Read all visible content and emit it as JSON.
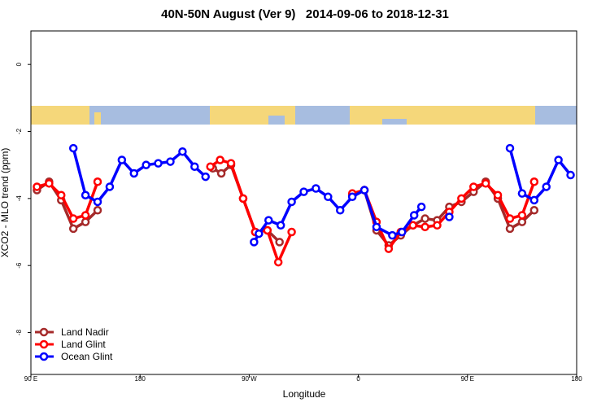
{
  "chart_data": {
    "type": "line",
    "title": "40N-50N August (Ver 9)   2014-09-06 to 2018-12-31",
    "x_label": "Longitude",
    "y_label": "XCO2 - MLO trend (ppm)",
    "xlim": [
      90,
      540
    ],
    "ylim": [
      -9.25,
      1
    ],
    "xticks": [
      {
        "value": 90,
        "label": "90 E"
      },
      {
        "value": 180,
        "label": "180"
      },
      {
        "value": 270,
        "label": "90 W"
      },
      {
        "value": 360,
        "label": "0"
      },
      {
        "value": 450,
        "label": "90 E"
      },
      {
        "value": 540,
        "label": "180"
      }
    ],
    "yticks": [
      0,
      -2,
      -4,
      -6,
      -8
    ],
    "legend": "bottom-left",
    "series": [
      {
        "name": "Land Nadir",
        "color": "#a52a2a",
        "x": [
          95,
          105,
          115,
          125,
          135,
          145,
          null,
          240,
          247,
          255,
          265,
          275,
          285,
          295,
          null,
          355,
          365,
          375,
          385,
          395,
          405,
          415,
          425,
          435,
          445,
          455,
          465,
          475,
          485,
          495,
          505
        ],
        "values": [
          -3.75,
          -3.5,
          -4.05,
          -4.9,
          -4.7,
          -4.35,
          null,
          -3.1,
          -3.25,
          -3.0,
          -4.0,
          -5.0,
          -4.95,
          -5.3,
          null,
          -3.9,
          -3.75,
          -4.95,
          -5.4,
          -5.1,
          -4.8,
          -4.6,
          -4.65,
          -4.25,
          -4.1,
          -3.8,
          -3.5,
          -4.0,
          -4.9,
          -4.7,
          -4.35
        ]
      },
      {
        "name": "Land Glint",
        "color": "#ff0000",
        "x": [
          95,
          105,
          115,
          125,
          135,
          145,
          null,
          238,
          246,
          255,
          265,
          275,
          285,
          294,
          305,
          null,
          355,
          365,
          375,
          385,
          395,
          405,
          415,
          425,
          435,
          445,
          455,
          465,
          475,
          485,
          495,
          505
        ],
        "values": [
          -3.65,
          -3.55,
          -3.9,
          -4.6,
          -4.5,
          -3.5,
          null,
          -3.05,
          -2.85,
          -2.95,
          -4.0,
          -5.0,
          -4.95,
          -5.9,
          -5.0,
          null,
          -3.85,
          -3.75,
          -4.7,
          -5.5,
          -5.0,
          -4.8,
          -4.85,
          -4.8,
          -4.4,
          -4.0,
          -3.65,
          -3.55,
          -3.9,
          -4.6,
          -4.5,
          -3.5
        ]
      },
      {
        "name": "Ocean Glint",
        "color": "#0000ff",
        "x": [
          125,
          135,
          145,
          155,
          165,
          175,
          185,
          195,
          205,
          215,
          225,
          234,
          null,
          274,
          278,
          286,
          296,
          305,
          315,
          325,
          335,
          345,
          355,
          365,
          375,
          388,
          396,
          406,
          412,
          null,
          435,
          null,
          485,
          495,
          505,
          515,
          525,
          535
        ],
        "values": [
          -2.5,
          -3.9,
          -4.1,
          -3.65,
          -2.85,
          -3.25,
          -3.0,
          -2.95,
          -2.9,
          -2.6,
          -3.05,
          -3.35,
          null,
          -5.3,
          -5.05,
          -4.65,
          -4.8,
          -4.1,
          -3.8,
          -3.7,
          -3.95,
          -4.35,
          -3.95,
          -3.75,
          -4.85,
          -5.1,
          -5.0,
          -4.5,
          -4.25,
          null,
          -4.55,
          null,
          -2.5,
          -3.85,
          -4.05,
          -3.65,
          -2.85,
          -3.3
        ]
      }
    ]
  }
}
